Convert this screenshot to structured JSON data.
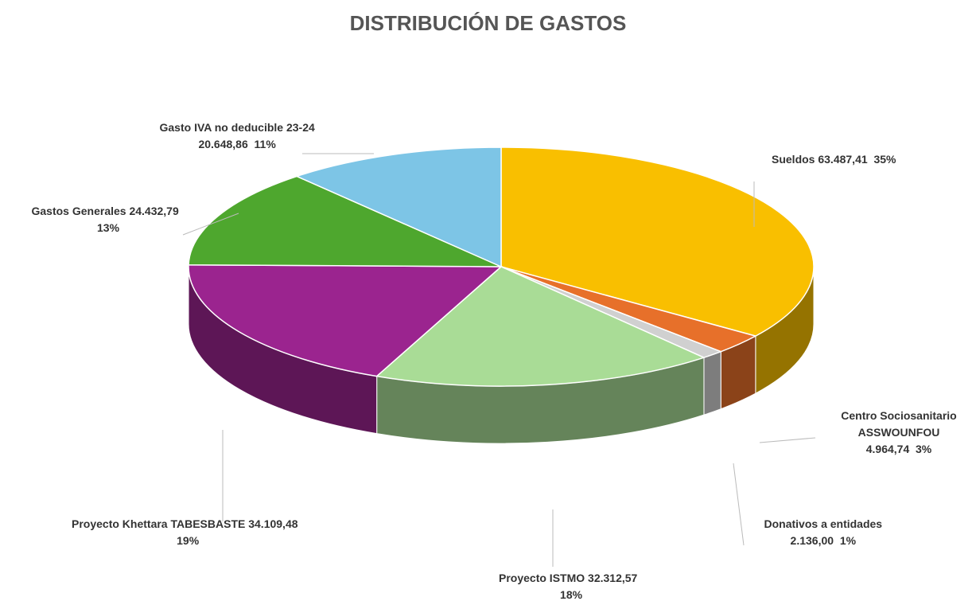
{
  "chart_data": {
    "type": "pie3d",
    "title": "DISTRIBUCIÓN DE GASTOS",
    "categories": [
      "Sueldos",
      "Centro Sociosanitario ASSWOUNFOU",
      "Donativos a entidades",
      "Proyecto ISTMO",
      "Proyecto Khettara TABESBASTE",
      "Gastos Generales",
      "Gasto IVA no deducible 23-24"
    ],
    "values": [
      63487.41,
      4964.74,
      2136.0,
      32312.57,
      34109.48,
      24432.79,
      20648.86
    ],
    "value_labels": [
      "63.487,41",
      "4.964,74",
      "2.136,00",
      "32.312,57",
      "34.109,48",
      "24.432,79",
      "20.648,86"
    ],
    "percent_labels": [
      "35%",
      "3%",
      "1%",
      "18%",
      "19%",
      "13%",
      "11%"
    ],
    "colors": [
      "#f9bf00",
      "#e7702a",
      "#d0d0d0",
      "#a9dc96",
      "#9b248f",
      "#4ea72e",
      "#7dc5e6"
    ]
  }
}
